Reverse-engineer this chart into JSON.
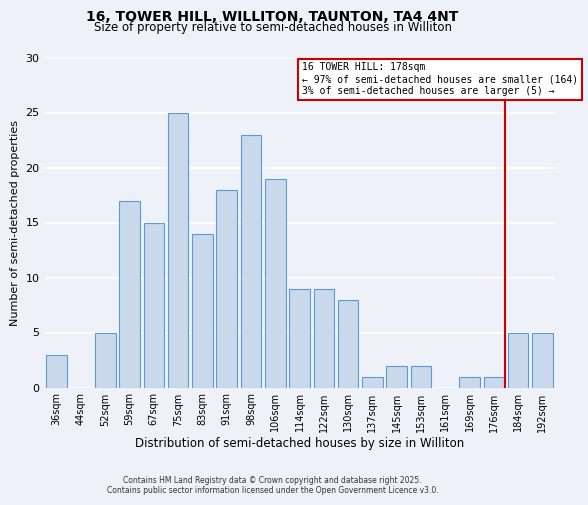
{
  "title": "16, TOWER HILL, WILLITON, TAUNTON, TA4 4NT",
  "subtitle": "Size of property relative to semi-detached houses in Williton",
  "xlabel": "Distribution of semi-detached houses by size in Williton",
  "ylabel": "Number of semi-detached properties",
  "bar_labels": [
    "36sqm",
    "44sqm",
    "52sqm",
    "59sqm",
    "67sqm",
    "75sqm",
    "83sqm",
    "91sqm",
    "98sqm",
    "106sqm",
    "114sqm",
    "122sqm",
    "130sqm",
    "137sqm",
    "145sqm",
    "153sqm",
    "161sqm",
    "169sqm",
    "176sqm",
    "184sqm",
    "192sqm"
  ],
  "bar_heights": [
    3,
    0,
    5,
    17,
    15,
    25,
    14,
    18,
    23,
    19,
    9,
    9,
    8,
    1,
    2,
    2,
    0,
    1,
    1,
    5,
    5
  ],
  "bar_color": "#c9d9eb",
  "bar_edge_color": "#5b9bd5",
  "background_color": "#eef2f8",
  "grid_color": "#ffffff",
  "vline_x_index": 18.45,
  "vline_color": "#cc0000",
  "annotation_title": "16 TOWER HILL: 178sqm",
  "annotation_line1": "← 97% of semi-detached houses are smaller (164)",
  "annotation_line2": "3% of semi-detached houses are larger (5) →",
  "annotation_box_color": "#cc0000",
  "ylim": [
    0,
    30
  ],
  "yticks": [
    0,
    5,
    10,
    15,
    20,
    25,
    30
  ],
  "footer1": "Contains HM Land Registry data © Crown copyright and database right 2025.",
  "footer2": "Contains public sector information licensed under the Open Government Licence v3.0.",
  "title_fontsize": 10,
  "subtitle_fontsize": 8.5
}
